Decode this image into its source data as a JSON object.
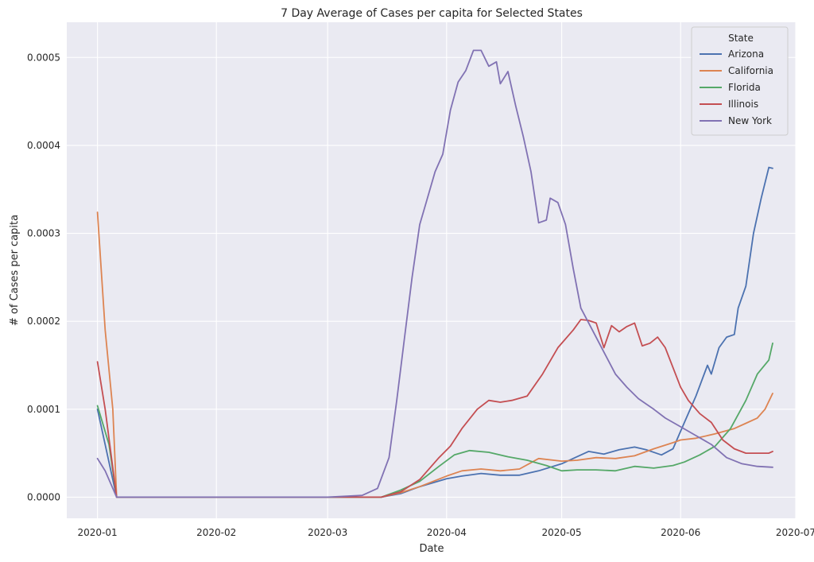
{
  "chart_data": {
    "type": "line",
    "title": "7 Day Average of Cases per capita for Selected States",
    "xlabel": "Date",
    "ylabel": "# of Cases per capita",
    "x_ticks": [
      "2020-01",
      "2020-02",
      "2020-03",
      "2020-04",
      "2020-05",
      "2020-06",
      "2020-07"
    ],
    "x_range": [
      "2019-12-24",
      "2020-07-01"
    ],
    "y_ticks": [
      "0.0000",
      "0.0001",
      "0.0002",
      "0.0003",
      "0.0004",
      "0.0005"
    ],
    "ylim": [
      -2.4e-05,
      0.00054
    ],
    "grid": true,
    "legend": {
      "title": "State",
      "placement": "top-right"
    },
    "series": [
      {
        "name": "Arizona",
        "color": "#4c72b0",
        "points": [
          [
            "2020-01-01",
            0.0001
          ],
          [
            "2020-01-06",
            0.0
          ],
          [
            "2020-03-01",
            0.0
          ],
          [
            "2020-03-15",
            0.0
          ],
          [
            "2020-03-20",
            4e-06
          ],
          [
            "2020-03-25",
            1.2e-05
          ],
          [
            "2020-04-01",
            2.1e-05
          ],
          [
            "2020-04-05",
            2.4e-05
          ],
          [
            "2020-04-10",
            2.7e-05
          ],
          [
            "2020-04-15",
            2.5e-05
          ],
          [
            "2020-04-20",
            2.5e-05
          ],
          [
            "2020-04-25",
            3e-05
          ],
          [
            "2020-05-01",
            3.8e-05
          ],
          [
            "2020-05-05",
            4.6e-05
          ],
          [
            "2020-05-08",
            5.2e-05
          ],
          [
            "2020-05-12",
            4.9e-05
          ],
          [
            "2020-05-16",
            5.4e-05
          ],
          [
            "2020-05-20",
            5.7e-05
          ],
          [
            "2020-05-23",
            5.4e-05
          ],
          [
            "2020-05-27",
            4.8e-05
          ],
          [
            "2020-05-30",
            5.5e-05
          ],
          [
            "2020-06-02",
            8.5e-05
          ],
          [
            "2020-06-05",
            0.000115
          ],
          [
            "2020-06-08",
            0.00015
          ],
          [
            "2020-06-09",
            0.00014
          ],
          [
            "2020-06-11",
            0.00017
          ],
          [
            "2020-06-13",
            0.000182
          ],
          [
            "2020-06-15",
            0.000185
          ],
          [
            "2020-06-16",
            0.000215
          ],
          [
            "2020-06-18",
            0.00024
          ],
          [
            "2020-06-20",
            0.0003
          ],
          [
            "2020-06-22",
            0.00034
          ],
          [
            "2020-06-24",
            0.000375
          ],
          [
            "2020-06-25",
            0.000374
          ]
        ]
      },
      {
        "name": "California",
        "color": "#dd8452",
        "points": [
          [
            "2020-01-01",
            0.000324
          ],
          [
            "2020-01-03",
            0.00019
          ],
          [
            "2020-01-05",
            0.0001
          ],
          [
            "2020-01-06",
            0.0
          ],
          [
            "2020-03-01",
            0.0
          ],
          [
            "2020-03-15",
            0.0
          ],
          [
            "2020-03-20",
            5e-06
          ],
          [
            "2020-03-25",
            1.2e-05
          ],
          [
            "2020-04-01",
            2.4e-05
          ],
          [
            "2020-04-05",
            3e-05
          ],
          [
            "2020-04-10",
            3.2e-05
          ],
          [
            "2020-04-15",
            3e-05
          ],
          [
            "2020-04-20",
            3.2e-05
          ],
          [
            "2020-04-25",
            4.4e-05
          ],
          [
            "2020-05-01",
            4.1e-05
          ],
          [
            "2020-05-05",
            4.2e-05
          ],
          [
            "2020-05-10",
            4.5e-05
          ],
          [
            "2020-05-15",
            4.4e-05
          ],
          [
            "2020-05-20",
            4.7e-05
          ],
          [
            "2020-05-25",
            5.5e-05
          ],
          [
            "2020-05-30",
            6.2e-05
          ],
          [
            "2020-06-01",
            6.5e-05
          ],
          [
            "2020-06-05",
            6.7e-05
          ],
          [
            "2020-06-10",
            7.2e-05
          ],
          [
            "2020-06-15",
            7.8e-05
          ],
          [
            "2020-06-18",
            8.4e-05
          ],
          [
            "2020-06-21",
            9e-05
          ],
          [
            "2020-06-23",
            0.0001
          ],
          [
            "2020-06-25",
            0.000118
          ]
        ]
      },
      {
        "name": "Florida",
        "color": "#55a868",
        "points": [
          [
            "2020-01-01",
            0.000104
          ],
          [
            "2020-01-04",
            6e-05
          ],
          [
            "2020-01-06",
            0.0
          ],
          [
            "2020-03-01",
            0.0
          ],
          [
            "2020-03-15",
            0.0
          ],
          [
            "2020-03-20",
            8e-06
          ],
          [
            "2020-03-25",
            1.8e-05
          ],
          [
            "2020-03-30",
            3.5e-05
          ],
          [
            "2020-04-03",
            4.8e-05
          ],
          [
            "2020-04-07",
            5.3e-05
          ],
          [
            "2020-04-12",
            5.1e-05
          ],
          [
            "2020-04-17",
            4.6e-05
          ],
          [
            "2020-04-22",
            4.2e-05
          ],
          [
            "2020-04-27",
            3.6e-05
          ],
          [
            "2020-05-01",
            3e-05
          ],
          [
            "2020-05-05",
            3.1e-05
          ],
          [
            "2020-05-10",
            3.1e-05
          ],
          [
            "2020-05-15",
            3e-05
          ],
          [
            "2020-05-20",
            3.5e-05
          ],
          [
            "2020-05-25",
            3.3e-05
          ],
          [
            "2020-05-30",
            3.6e-05
          ],
          [
            "2020-06-02",
            4e-05
          ],
          [
            "2020-06-06",
            4.8e-05
          ],
          [
            "2020-06-10",
            5.8e-05
          ],
          [
            "2020-06-14",
            7.8e-05
          ],
          [
            "2020-06-18",
            0.00011
          ],
          [
            "2020-06-21",
            0.00014
          ],
          [
            "2020-06-24",
            0.000156
          ],
          [
            "2020-06-25",
            0.000175
          ]
        ]
      },
      {
        "name": "Illinois",
        "color": "#c44e52",
        "points": [
          [
            "2020-01-01",
            0.000154
          ],
          [
            "2020-01-03",
            0.0001
          ],
          [
            "2020-01-06",
            0.0
          ],
          [
            "2020-03-01",
            0.0
          ],
          [
            "2020-03-15",
            0.0
          ],
          [
            "2020-03-20",
            6e-06
          ],
          [
            "2020-03-25",
            2e-05
          ],
          [
            "2020-03-30",
            4.5e-05
          ],
          [
            "2020-04-02",
            5.8e-05
          ],
          [
            "2020-04-05",
            7.8e-05
          ],
          [
            "2020-04-09",
            0.0001
          ],
          [
            "2020-04-12",
            0.00011
          ],
          [
            "2020-04-15",
            0.000108
          ],
          [
            "2020-04-18",
            0.00011
          ],
          [
            "2020-04-22",
            0.000115
          ],
          [
            "2020-04-26",
            0.00014
          ],
          [
            "2020-04-30",
            0.00017
          ],
          [
            "2020-05-04",
            0.00019
          ],
          [
            "2020-05-06",
            0.000202
          ],
          [
            "2020-05-08",
            0.000201
          ],
          [
            "2020-05-10",
            0.000198
          ],
          [
            "2020-05-12",
            0.00017
          ],
          [
            "2020-05-14",
            0.000195
          ],
          [
            "2020-05-16",
            0.000188
          ],
          [
            "2020-05-18",
            0.000194
          ],
          [
            "2020-05-20",
            0.000198
          ],
          [
            "2020-05-22",
            0.000172
          ],
          [
            "2020-05-24",
            0.000175
          ],
          [
            "2020-05-26",
            0.000182
          ],
          [
            "2020-05-28",
            0.00017
          ],
          [
            "2020-06-01",
            0.000125
          ],
          [
            "2020-06-03",
            0.00011
          ],
          [
            "2020-06-06",
            9.5e-05
          ],
          [
            "2020-06-09",
            8.5e-05
          ],
          [
            "2020-06-12",
            6.5e-05
          ],
          [
            "2020-06-15",
            5.5e-05
          ],
          [
            "2020-06-18",
            5e-05
          ],
          [
            "2020-06-21",
            5e-05
          ],
          [
            "2020-06-24",
            5e-05
          ],
          [
            "2020-06-25",
            5.2e-05
          ]
        ]
      },
      {
        "name": "New York",
        "color": "#8172b3",
        "points": [
          [
            "2020-01-01",
            4.4e-05
          ],
          [
            "2020-01-03",
            3e-05
          ],
          [
            "2020-01-06",
            0.0
          ],
          [
            "2020-03-01",
            0.0
          ],
          [
            "2020-03-10",
            2e-06
          ],
          [
            "2020-03-14",
            1e-05
          ],
          [
            "2020-03-17",
            4.5e-05
          ],
          [
            "2020-03-19",
            0.00011
          ],
          [
            "2020-03-21",
            0.00018
          ],
          [
            "2020-03-23",
            0.00025
          ],
          [
            "2020-03-25",
            0.00031
          ],
          [
            "2020-03-27",
            0.00034
          ],
          [
            "2020-03-29",
            0.00037
          ],
          [
            "2020-03-31",
            0.00039
          ],
          [
            "2020-04-02",
            0.00044
          ],
          [
            "2020-04-04",
            0.000472
          ],
          [
            "2020-04-06",
            0.000485
          ],
          [
            "2020-04-08",
            0.000508
          ],
          [
            "2020-04-10",
            0.000508
          ],
          [
            "2020-04-12",
            0.00049
          ],
          [
            "2020-04-14",
            0.000495
          ],
          [
            "2020-04-15",
            0.00047
          ],
          [
            "2020-04-17",
            0.000484
          ],
          [
            "2020-04-19",
            0.000445
          ],
          [
            "2020-04-21",
            0.00041
          ],
          [
            "2020-04-23",
            0.00037
          ],
          [
            "2020-04-25",
            0.000312
          ],
          [
            "2020-04-27",
            0.000315
          ],
          [
            "2020-04-28",
            0.00034
          ],
          [
            "2020-04-30",
            0.000335
          ],
          [
            "2020-05-02",
            0.00031
          ],
          [
            "2020-05-04",
            0.00026
          ],
          [
            "2020-05-06",
            0.000215
          ],
          [
            "2020-05-09",
            0.00019
          ],
          [
            "2020-05-12",
            0.000165
          ],
          [
            "2020-05-15",
            0.00014
          ],
          [
            "2020-05-18",
            0.000125
          ],
          [
            "2020-05-21",
            0.000112
          ],
          [
            "2020-05-25",
            0.0001
          ],
          [
            "2020-05-28",
            9e-05
          ],
          [
            "2020-06-01",
            8e-05
          ],
          [
            "2020-06-05",
            7e-05
          ],
          [
            "2020-06-09",
            6e-05
          ],
          [
            "2020-06-13",
            4.5e-05
          ],
          [
            "2020-06-17",
            3.8e-05
          ],
          [
            "2020-06-21",
            3.5e-05
          ],
          [
            "2020-06-25",
            3.4e-05
          ]
        ]
      }
    ]
  }
}
